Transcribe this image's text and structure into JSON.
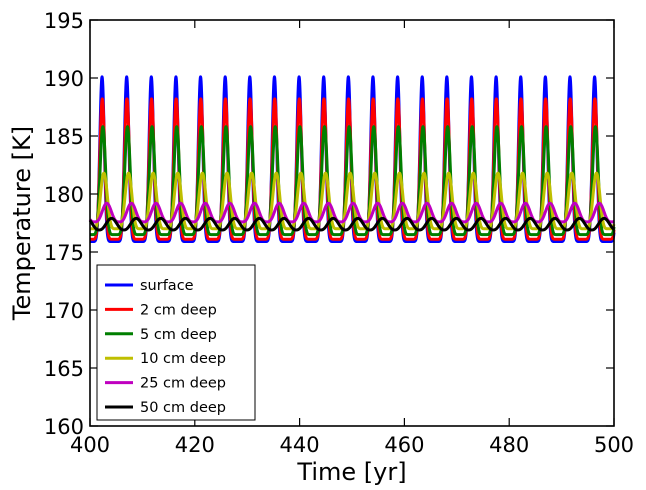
{
  "chart_data": {
    "type": "line",
    "title": "",
    "xlabel": "Time [yr]",
    "ylabel": "Temperature [K]",
    "xlim": [
      400,
      500
    ],
    "ylim": [
      160,
      195
    ],
    "xticks": [
      400,
      420,
      440,
      460,
      480,
      500
    ],
    "yticks": [
      160,
      165,
      170,
      175,
      180,
      185,
      190,
      195
    ],
    "grid": false,
    "legend_position": "lower-left",
    "period_yr": 4.7,
    "phase_peak_yr": 402.3,
    "series": [
      {
        "name": "surface",
        "color": "#0000ff",
        "min": 175.9,
        "max": 190.1,
        "phase_lag_yr": 0.0
      },
      {
        "name": "2 cm deep",
        "color": "#ff0000",
        "min": 176.1,
        "max": 188.2,
        "phase_lag_yr": 0.05
      },
      {
        "name": "5 cm deep",
        "color": "#007f00",
        "min": 176.5,
        "max": 185.8,
        "phase_lag_yr": 0.15
      },
      {
        "name": "10 cm deep",
        "color": "#bfbf00",
        "min": 177.0,
        "max": 181.8,
        "phase_lag_yr": 0.35
      },
      {
        "name": "25 cm deep",
        "color": "#bf00bf",
        "min": 177.6,
        "max": 179.2,
        "phase_lag_yr": 0.9
      },
      {
        "name": "50 cm deep",
        "color": "#000000",
        "min": 176.9,
        "max": 177.9,
        "phase_lag_yr": 1.8
      }
    ]
  }
}
